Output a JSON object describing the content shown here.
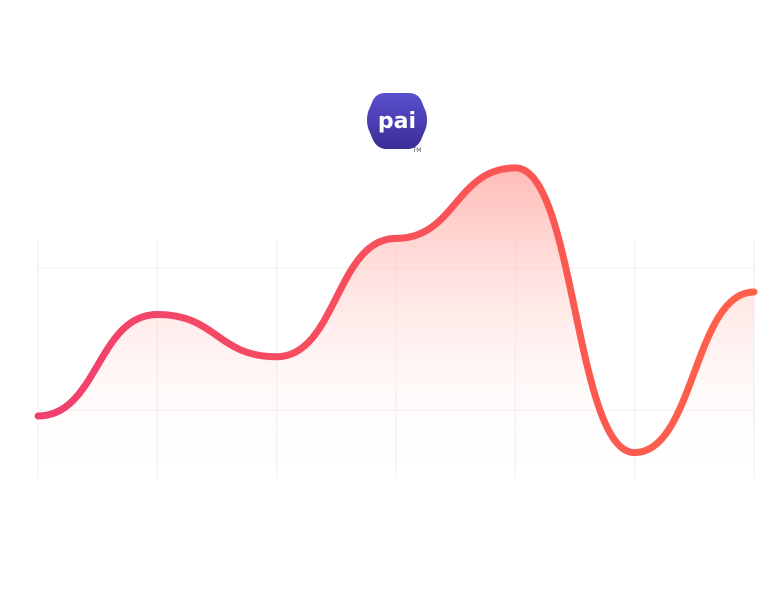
{
  "logo": {
    "text": "pai",
    "trademark": "TM",
    "colors": {
      "top": "#5b4fcf",
      "bottom": "#3a2e96"
    }
  },
  "chart_data": {
    "type": "area",
    "title": "",
    "xlabel": "",
    "ylabel": "",
    "x": [
      0,
      1,
      2,
      3,
      4,
      5,
      6
    ],
    "series": [
      {
        "values": [
          22,
          58,
          43,
          85,
          110,
          9,
          66
        ]
      }
    ],
    "xlim": [
      0,
      6
    ],
    "ylim": [
      0,
      127
    ],
    "grid": true,
    "legend": "none",
    "colors": {
      "line_start": "#f0406e",
      "line_end": "#ff6148",
      "fill_top": "#ffb3ad",
      "fill_bottom": "#ffffff",
      "grid": "#ececec"
    }
  }
}
